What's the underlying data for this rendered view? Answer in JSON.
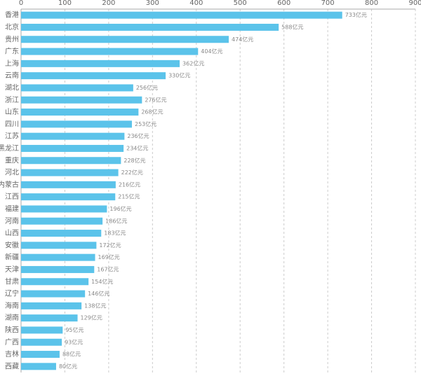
{
  "chart_data": {
    "type": "bar",
    "orientation": "horizontal",
    "categories": [
      "香港",
      "北京",
      "贵州",
      "广东",
      "上海",
      "云南",
      "湖北",
      "浙江",
      "山东",
      "四川",
      "江苏",
      "黑龙江",
      "重庆",
      "河北",
      "内蒙古",
      "江西",
      "福建",
      "河南",
      "山西",
      "安徽",
      "新疆",
      "天津",
      "甘肃",
      "辽宁",
      "海南",
      "湖南",
      "陕西",
      "广西",
      "吉林",
      "西藏"
    ],
    "values": [
      733,
      588,
      474,
      404,
      362,
      330,
      256,
      276,
      268,
      253,
      236,
      234,
      228,
      222,
      216,
      215,
      196,
      186,
      183,
      172,
      169,
      167,
      154,
      146,
      138,
      129,
      95,
      93,
      88,
      80
    ],
    "value_labels": [
      "733亿元",
      "588亿元",
      "474亿元",
      "404亿元",
      "362亿元",
      "330亿元",
      "256亿元",
      "276亿元",
      "268亿元",
      "253亿元",
      "236亿元",
      "234亿元",
      "228亿元",
      "222亿元",
      "216亿元",
      "215亿元",
      "196亿元",
      "186亿元",
      "183亿元",
      "172亿元",
      "169亿元",
      "167亿元",
      "154亿元",
      "146亿元",
      "138亿元",
      "129亿元",
      "95亿元",
      "93亿元",
      "88亿元",
      "80亿元"
    ],
    "color": "#5bc3ea",
    "xlim": [
      0,
      900
    ],
    "xticks": [
      0,
      100,
      200,
      300,
      400,
      500,
      600,
      700,
      800,
      900
    ],
    "grid": true
  }
}
